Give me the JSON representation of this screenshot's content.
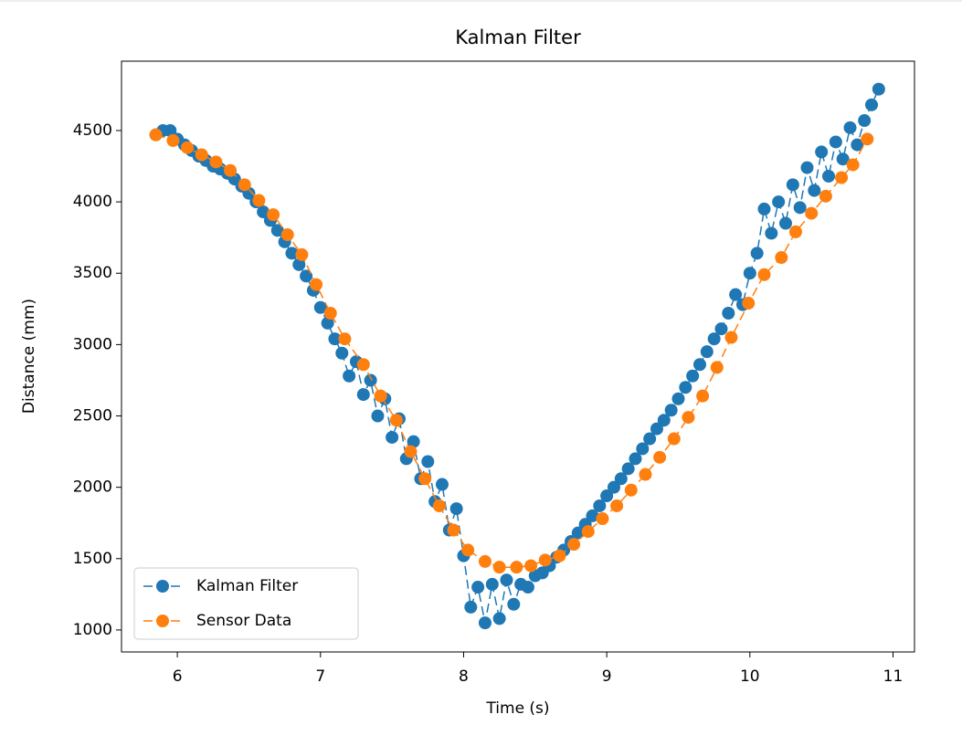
{
  "chart_data": {
    "type": "line",
    "title": "Kalman Filter",
    "xlabel": "Time (s)",
    "ylabel": "Distance (mm)",
    "xlim": [
      5.61,
      11.15
    ],
    "xticks": [
      6,
      7,
      8,
      9,
      10,
      11
    ],
    "ylim": [
      846,
      4986
    ],
    "yticks": [
      1000,
      1500,
      2000,
      2500,
      3000,
      3500,
      4000,
      4500
    ],
    "grid": false,
    "legend": "lower left",
    "linestyle": "dashed",
    "marker": "circle",
    "series": [
      {
        "name": "Kalman Filter",
        "color": "#1f77b4",
        "x": [
          5.85,
          5.9,
          5.95,
          6.0,
          6.05,
          6.1,
          6.15,
          6.2,
          6.25,
          6.3,
          6.35,
          6.4,
          6.45,
          6.5,
          6.55,
          6.6,
          6.65,
          6.7,
          6.75,
          6.8,
          6.85,
          6.9,
          6.95,
          7.0,
          7.05,
          7.1,
          7.15,
          7.2,
          7.25,
          7.3,
          7.35,
          7.4,
          7.45,
          7.5,
          7.55,
          7.6,
          7.65,
          7.7,
          7.75,
          7.8,
          7.85,
          7.9,
          7.95,
          8.0,
          8.05,
          8.1,
          8.15,
          8.2,
          8.25,
          8.3,
          8.35,
          8.4,
          8.45,
          8.5,
          8.55,
          8.6,
          8.65,
          8.7,
          8.75,
          8.8,
          8.85,
          8.9,
          8.95,
          9.0,
          9.05,
          9.1,
          9.15,
          9.2,
          9.25,
          9.3,
          9.35,
          9.4,
          9.45,
          9.5,
          9.55,
          9.6,
          9.65,
          9.7,
          9.75,
          9.8,
          9.85,
          9.9,
          9.95,
          10.0,
          10.05,
          10.1,
          10.15,
          10.2,
          10.25,
          10.3,
          10.35,
          10.4,
          10.45,
          10.5,
          10.55,
          10.6,
          10.65,
          10.7,
          10.75,
          10.8,
          10.85,
          10.9
        ],
        "values": [
          4470,
          4500,
          4500,
          4440,
          4400,
          4360,
          4320,
          4290,
          4250,
          4230,
          4200,
          4160,
          4110,
          4060,
          4000,
          3930,
          3870,
          3800,
          3720,
          3640,
          3560,
          3480,
          3380,
          3260,
          3150,
          3040,
          2940,
          2780,
          2880,
          2650,
          2750,
          2500,
          2620,
          2350,
          2480,
          2200,
          2320,
          2060,
          2180,
          1900,
          2020,
          1700,
          1850,
          1520,
          1160,
          1300,
          1050,
          1320,
          1080,
          1350,
          1180,
          1320,
          1300,
          1380,
          1400,
          1450,
          1510,
          1560,
          1620,
          1680,
          1740,
          1800,
          1870,
          1940,
          2000,
          2060,
          2130,
          2200,
          2270,
          2340,
          2410,
          2470,
          2540,
          2620,
          2700,
          2780,
          2860,
          2950,
          3040,
          3110,
          3220,
          3350,
          3280,
          3500,
          3640,
          3950,
          3780,
          4000,
          3850,
          4120,
          3960,
          4240,
          4080,
          4350,
          4180,
          4420,
          4300,
          4520,
          4400,
          4570,
          4680,
          4790
        ]
      },
      {
        "name": "Sensor Data",
        "color": "#ff7f0e",
        "x": [
          5.85,
          5.97,
          6.07,
          6.17,
          6.27,
          6.37,
          6.47,
          6.57,
          6.67,
          6.77,
          6.87,
          6.97,
          7.07,
          7.17,
          7.3,
          7.42,
          7.53,
          7.63,
          7.73,
          7.83,
          7.93,
          8.03,
          8.15,
          8.25,
          8.37,
          8.47,
          8.57,
          8.67,
          8.77,
          8.87,
          8.97,
          9.07,
          9.17,
          9.27,
          9.37,
          9.47,
          9.57,
          9.67,
          9.77,
          9.87,
          9.99,
          10.1,
          10.22,
          10.32,
          10.43,
          10.53,
          10.64,
          10.72,
          10.82
        ],
        "values": [
          4470,
          4430,
          4380,
          4330,
          4280,
          4220,
          4120,
          4010,
          3910,
          3770,
          3630,
          3420,
          3220,
          3040,
          2860,
          2640,
          2470,
          2250,
          2060,
          1870,
          1700,
          1560,
          1480,
          1440,
          1440,
          1450,
          1490,
          1520,
          1600,
          1690,
          1780,
          1870,
          1980,
          2090,
          2210,
          2340,
          2490,
          2640,
          2840,
          3050,
          3290,
          3490,
          3610,
          3790,
          3920,
          4040,
          4170,
          4260,
          4440
        ]
      }
    ]
  }
}
